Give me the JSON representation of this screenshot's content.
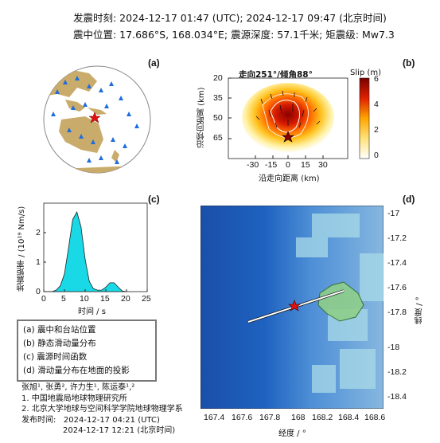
{
  "header": {
    "line1": "发震时刻: 2024-12-17 01:47 (UTC);   2024-12-17  09:47 (北京时间)",
    "line2": "震中位置: 17.686°S,  168.034°E;  震源深度: 57.1千米; 矩震级: Mw7.3"
  },
  "panels": {
    "a": "(a)",
    "b": "(b)",
    "c": "(c)",
    "d": "(d)"
  },
  "panel_b": {
    "title": "走向251°/倾角88°",
    "colorbar_label": "Slip (m)",
    "colorbar_ticks": [
      "6",
      "4",
      "2",
      "0"
    ],
    "y_label": "沿倾向距离 (km)",
    "x_label": "沿走向距离 (km)",
    "y_ticks": [
      "20",
      "35",
      "50",
      "65"
    ],
    "x_ticks": [
      "-30",
      "-15",
      "0",
      "15",
      "30"
    ]
  },
  "panel_c": {
    "y_label": "地震矩率 / (10¹⁹ Nm/s)",
    "x_label": "时间 / s",
    "y_ticks": [
      "0",
      "1",
      "2"
    ],
    "x_ticks": [
      "0",
      "5",
      "10",
      "15",
      "20",
      "25"
    ]
  },
  "panel_d": {
    "y_label": "纬度 / °",
    "x_label": "经度 / °",
    "y_ticks": [
      "-17",
      "-17.2",
      "-17.4",
      "-17.6",
      "-17.8",
      "-18",
      "-18.2",
      "-18.4"
    ],
    "x_ticks": [
      "167.4",
      "167.6",
      "167.8",
      "168",
      "168.2",
      "168.4",
      "168.6"
    ]
  },
  "legend": {
    "items": [
      "(a) 震中和台站位置",
      "(b) 静态滑动量分布",
      "(c) 震源时间函数",
      "(d) 滑动量分布在地面的投影"
    ]
  },
  "credits": {
    "authors": "张旭¹, 张勇², 许力生¹, 陈运泰¹,²",
    "aff1": "1. 中国地震局地球物理研究所",
    "aff2": "2. 北京大学地球与空间科学学院地球物理学系",
    "release_label": "发布时间:",
    "release1": "2024-12-17  04:21 (UTC)",
    "release2": "2024-12-17  12:21 (北京时间)"
  },
  "chart_data": [
    {
      "type": "area",
      "panel": "c",
      "x": [
        0,
        2,
        3,
        4,
        5,
        6,
        7,
        8,
        9,
        10,
        11,
        12,
        13,
        14,
        15,
        16,
        17,
        18,
        19,
        20
      ],
      "y": [
        0,
        0,
        0.05,
        0.2,
        0.6,
        1.5,
        2.45,
        2.7,
        2.2,
        1.1,
        0.35,
        0.1,
        0.05,
        0.05,
        0.15,
        0.3,
        0.3,
        0.15,
        0.02,
        0
      ],
      "xlabel": "时间 / s",
      "ylabel": "地震矩率 / (10¹⁹ Nm/s)",
      "xlim": [
        0,
        25
      ],
      "ylim": [
        0,
        3
      ],
      "colors": {
        "fill": "#19d9e6",
        "line": "#222222"
      }
    },
    {
      "type": "heatmap",
      "panel": "b",
      "title": "走向251°/倾角88°",
      "xlabel": "沿走向距离 (km)",
      "ylabel": "沿倾向距离 (km)",
      "xlim": [
        -40,
        40
      ],
      "ylim": [
        20,
        65
      ],
      "clim": [
        0,
        6.5
      ],
      "peak_slip": 6.3,
      "colormap": [
        "#ffffff",
        "#fff0a0",
        "#ffd21e",
        "#ff8a00",
        "#e02000",
        "#8b0000"
      ]
    }
  ]
}
